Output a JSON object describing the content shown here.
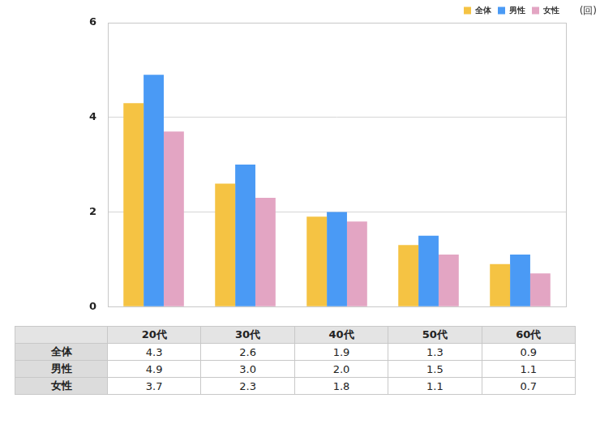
{
  "chart_data": {
    "type": "bar",
    "y_label": "(回)",
    "categories": [
      "20代",
      "30代",
      "40代",
      "50代",
      "60代"
    ],
    "series": [
      {
        "name": "全体",
        "color": "#f5c343",
        "values": [
          4.3,
          2.6,
          1.9,
          1.3,
          0.9
        ]
      },
      {
        "name": "男性",
        "color": "#4a9af5",
        "values": [
          4.9,
          3.0,
          2.0,
          1.5,
          1.1
        ]
      },
      {
        "name": "女性",
        "color": "#e3a5c3",
        "values": [
          3.7,
          2.3,
          1.8,
          1.1,
          0.7
        ]
      }
    ],
    "ylim": [
      0,
      6
    ],
    "yticks": [
      0,
      2,
      4,
      6
    ],
    "grid": true,
    "legend": "upper right",
    "tick_labels": "y"
  }
}
